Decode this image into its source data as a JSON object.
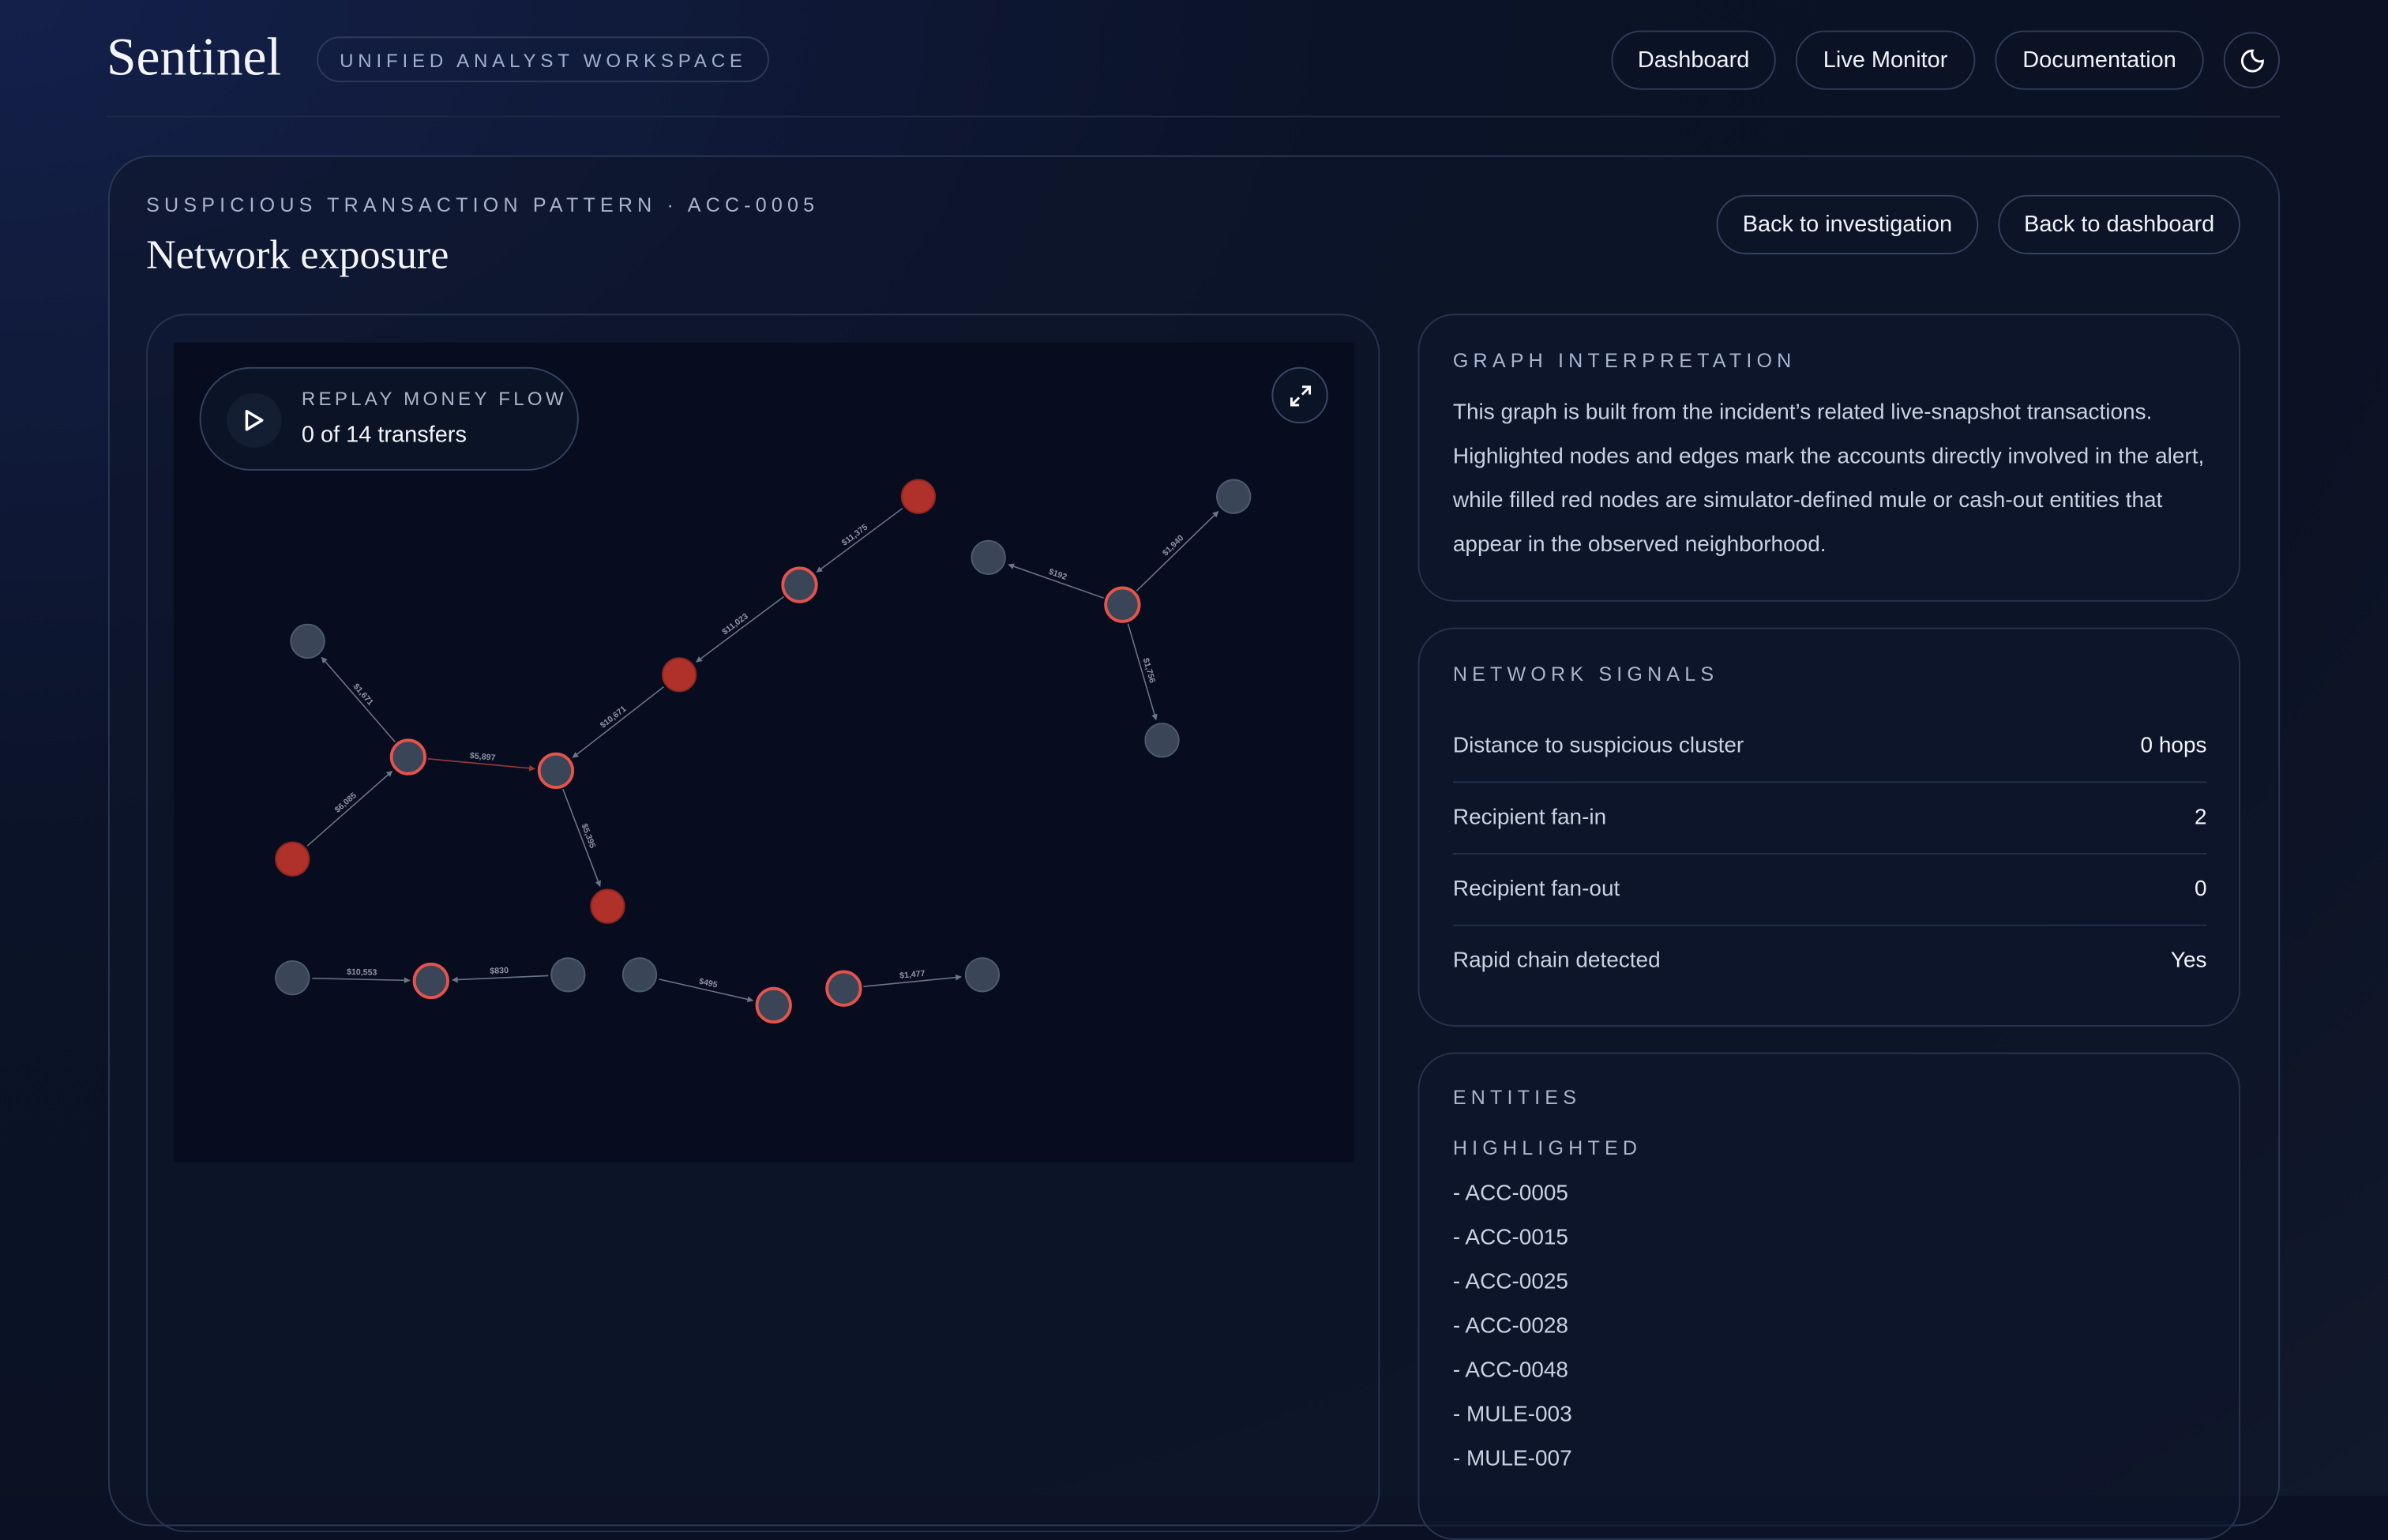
{
  "header": {
    "brand": "Sentinel",
    "tagline": "UNIFIED ANALYST WORKSPACE",
    "nav": [
      "Dashboard",
      "Live Monitor",
      "Documentation"
    ],
    "theme_icon": "moon-icon"
  },
  "page": {
    "eyebrow": "SUSPICIOUS TRANSACTION PATTERN · ACC-0005",
    "title": "Network exposure",
    "back_investigation": "Back to investigation",
    "back_dashboard": "Back to dashboard"
  },
  "replay": {
    "label": "REPLAY MONEY FLOW",
    "progress": "0 of 14 transfers",
    "icon": "play-icon"
  },
  "graph": {
    "colors": {
      "mule": "#b0302a",
      "highlight_ring": "#e5534b",
      "neutral": "#3a4558",
      "edge": "#6b7689",
      "edge_alert": "#9b3a3a"
    },
    "nodes": [
      "mule",
      "highlighted",
      "mule",
      "highlighted",
      "highlighted",
      "neutral",
      "mule",
      "mule",
      "neutral",
      "highlighted",
      "neutral",
      "neutral",
      "neutral",
      "highlighted",
      "neutral",
      "neutral",
      "highlighted",
      "highlighted",
      "neutral"
    ],
    "edges": [
      {
        "from": 0,
        "to": 1,
        "amount": "$11,375"
      },
      {
        "from": 1,
        "to": 2,
        "amount": "$11,023"
      },
      {
        "from": 2,
        "to": 3,
        "amount": "$10,671"
      },
      {
        "from": 4,
        "to": 3,
        "amount": "$5,897",
        "alert": true
      },
      {
        "from": 4,
        "to": 5,
        "amount": "$1,671"
      },
      {
        "from": 6,
        "to": 4,
        "amount": "$6,085"
      },
      {
        "from": 3,
        "to": 7,
        "amount": "$5,395"
      },
      {
        "from": 9,
        "to": 8,
        "amount": "$192"
      },
      {
        "from": 9,
        "to": 10,
        "amount": "$1,940"
      },
      {
        "from": 9,
        "to": 11,
        "amount": "$1,756"
      },
      {
        "from": 12,
        "to": 13,
        "amount": "$10,553"
      },
      {
        "from": 14,
        "to": 13,
        "amount": "$830"
      },
      {
        "from": 15,
        "to": 16,
        "amount": "$495"
      },
      {
        "from": 17,
        "to": 18,
        "amount": "$1,477"
      }
    ]
  },
  "interpretation": {
    "heading": "GRAPH INTERPRETATION",
    "text": "This graph is built from the incident’s related live-snapshot transactions. Highlighted nodes and edges mark the accounts directly involved in the alert, while filled red nodes are simulator-defined mule or cash-out entities that appear in the observed neighborhood."
  },
  "signals": {
    "heading": "NETWORK SIGNALS",
    "rows": [
      {
        "label": "Distance to suspicious cluster",
        "value": "0 hops"
      },
      {
        "label": "Recipient fan-in",
        "value": "2"
      },
      {
        "label": "Recipient fan-out",
        "value": "0"
      },
      {
        "label": "Rapid chain detected",
        "value": "Yes"
      }
    ]
  },
  "entities": {
    "heading": "ENTITIES",
    "subheading": "HIGHLIGHTED",
    "items": [
      "- ACC-0005",
      "- ACC-0015",
      "- ACC-0025",
      "- ACC-0028",
      "- ACC-0048",
      "- MULE-003",
      "- MULE-007"
    ]
  }
}
